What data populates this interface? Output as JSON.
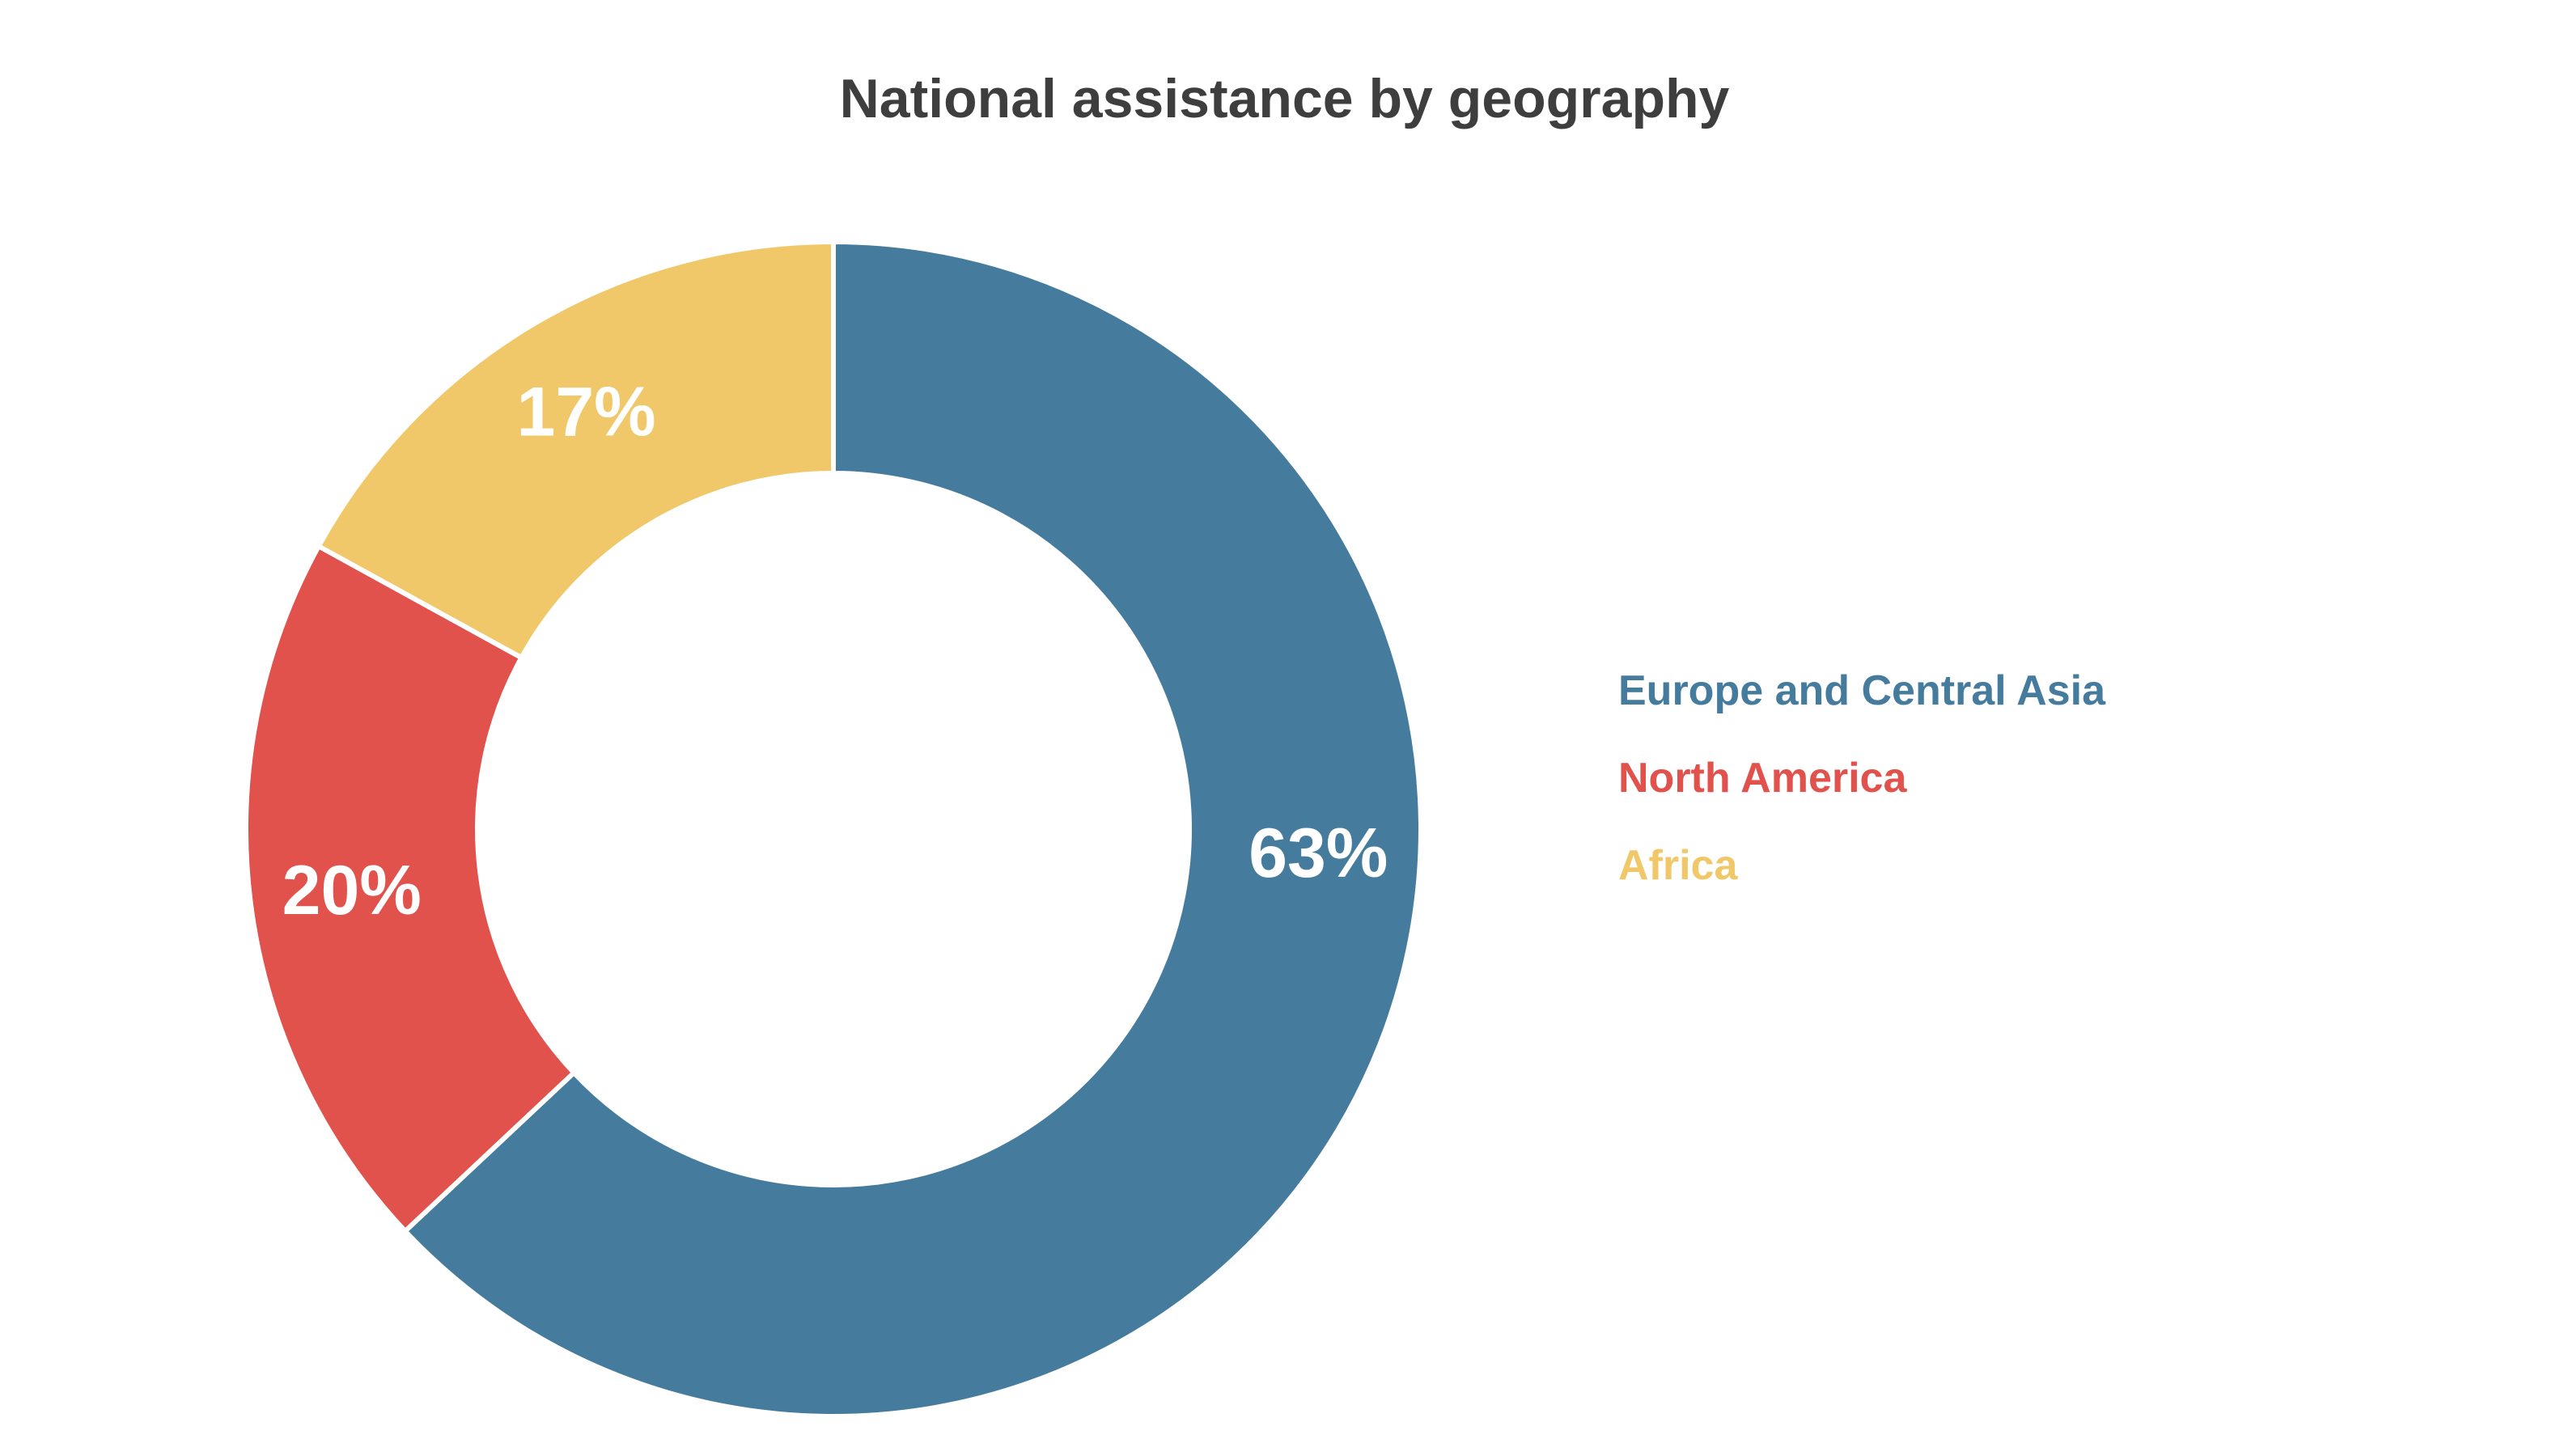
{
  "chart_data": {
    "type": "pie",
    "title": "National assistance by geography",
    "categories": [
      "Europe and Central Asia",
      "North America",
      "Africa"
    ],
    "values": [
      63,
      20,
      17
    ],
    "value_labels": [
      "63%",
      "20%",
      "17%"
    ],
    "colors": [
      "#457b9d",
      "#e0524b",
      "#f0c869"
    ],
    "legend_position": "right",
    "donut": true
  }
}
